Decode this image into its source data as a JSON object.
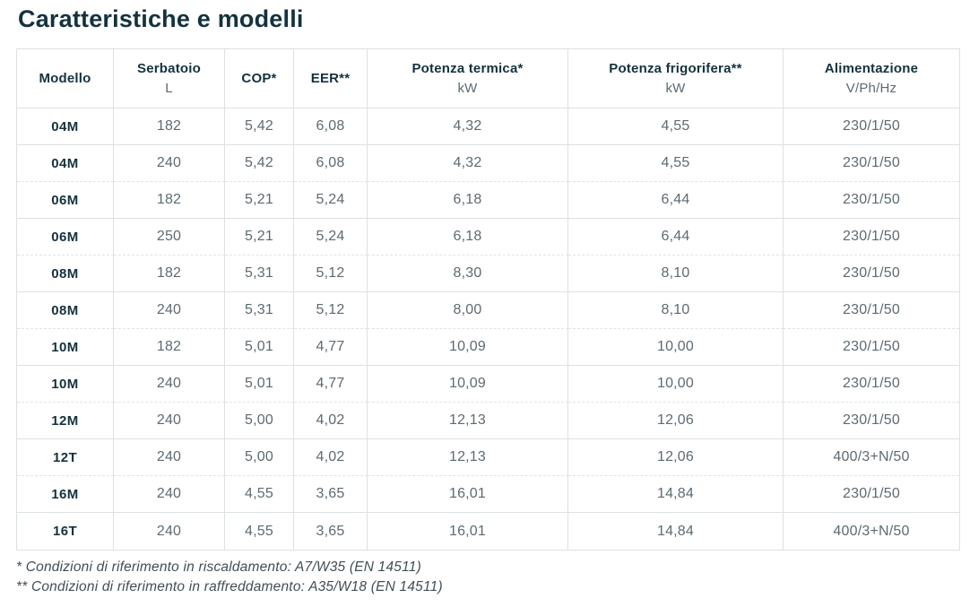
{
  "page": {
    "title": "Caratteristiche e modelli"
  },
  "table": {
    "columns": [
      {
        "label": "Modello",
        "sub": ""
      },
      {
        "label": "Serbatoio",
        "sub": "L"
      },
      {
        "label": "COP*",
        "sub": ""
      },
      {
        "label": "EER**",
        "sub": ""
      },
      {
        "label": "Potenza termica*",
        "sub": "kW"
      },
      {
        "label": "Potenza frigorifera**",
        "sub": "kW"
      },
      {
        "label": "Alimentazione",
        "sub": "V/Ph/Hz"
      }
    ],
    "rows": [
      [
        "04M",
        "182",
        "5,42",
        "6,08",
        "4,32",
        "4,55",
        "230/1/50"
      ],
      [
        "04M",
        "240",
        "5,42",
        "6,08",
        "4,32",
        "4,55",
        "230/1/50"
      ],
      [
        "06M",
        "182",
        "5,21",
        "5,24",
        "6,18",
        "6,44",
        "230/1/50"
      ],
      [
        "06M",
        "250",
        "5,21",
        "5,24",
        "6,18",
        "6,44",
        "230/1/50"
      ],
      [
        "08M",
        "182",
        "5,31",
        "5,12",
        "8,30",
        "8,10",
        "230/1/50"
      ],
      [
        "08M",
        "240",
        "5,31",
        "5,12",
        "8,00",
        "8,10",
        "230/1/50"
      ],
      [
        "10M",
        "182",
        "5,01",
        "4,77",
        "10,09",
        "10,00",
        "230/1/50"
      ],
      [
        "10M",
        "240",
        "5,01",
        "4,77",
        "10,09",
        "10,00",
        "230/1/50"
      ],
      [
        "12M",
        "240",
        "5,00",
        "4,02",
        "12,13",
        "12,06",
        "230/1/50"
      ],
      [
        "12T",
        "240",
        "5,00",
        "4,02",
        "12,13",
        "12,06",
        "400/3+N/50"
      ],
      [
        "16M",
        "240",
        "4,55",
        "3,65",
        "16,01",
        "14,84",
        "230/1/50"
      ],
      [
        "16T",
        "240",
        "4,55",
        "3,65",
        "16,01",
        "14,84",
        "400/3+N/50"
      ]
    ]
  },
  "footnotes": [
    "* Condizioni di riferimento in riscaldamento: A7/W35 (EN 14511)",
    "** Condizioni di riferimento in raffreddamento: A35/W18 (EN 14511)"
  ],
  "colors": {
    "title_text": "#14323e",
    "body_text": "#5d6a72",
    "border": "#dce1e4"
  }
}
